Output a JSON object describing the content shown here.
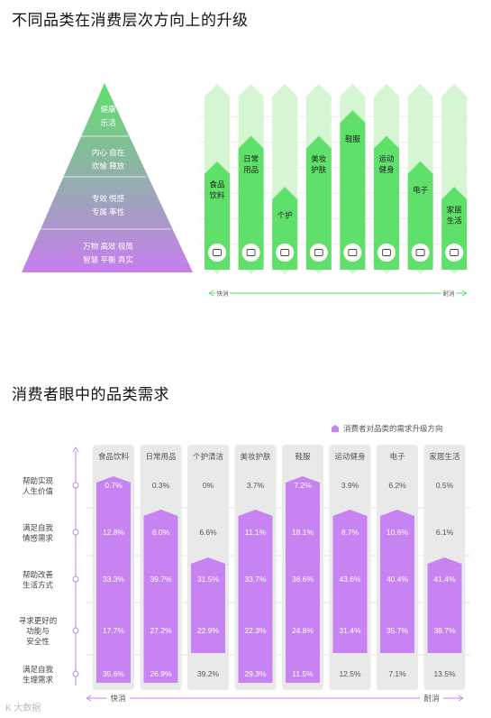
{
  "titles": {
    "top": "不同品类在消费层次方向上的升级",
    "bottom": "消费者眼中的品类需求"
  },
  "pyramid": {
    "levels": [
      {
        "lines": [
          "健康",
          "乐活"
        ]
      },
      {
        "lines": [
          "内心 自在",
          "欢愉 释放"
        ]
      },
      {
        "lines": [
          "专效  悦感",
          "专属  率性"
        ]
      },
      {
        "lines": [
          "万物  高效  极简",
          "智慧  平衡  真实"
        ]
      }
    ],
    "colors": {
      "top": "#5ee06a",
      "bottom": "#c77dee"
    }
  },
  "chart_data": [
    {
      "type": "bar",
      "title": "不同品类在消费层次方向上的升级",
      "categories": [
        "食品饮料",
        "日常用品",
        "个护",
        "美妆护肤",
        "鞋服",
        "运动健身",
        "电子",
        "家居生活"
      ],
      "category_labels": [
        [
          "食品",
          "饮料"
        ],
        [
          "日常",
          "用品"
        ],
        [
          "个护"
        ],
        [
          "美妆",
          "护肤"
        ],
        [
          "鞋服"
        ],
        [
          "运动",
          "健身"
        ],
        [
          "电子"
        ],
        [
          "家居",
          "生活"
        ]
      ],
      "icons": [
        "burger-icon",
        "toilet-paper-icon",
        "lotion-bottle-icon",
        "lipstick-icon",
        "boot-icon",
        "dumbbell-icon",
        "monitor-icon",
        "sofa-icon"
      ],
      "levels": [
        4,
        5,
        3,
        5,
        6,
        5,
        4,
        3
      ],
      "levels_max": 7,
      "xaxis": {
        "left": "快消",
        "right": "耐消"
      },
      "colors": {
        "bar": "#5ee06a",
        "band": "#d6f5d2"
      }
    },
    {
      "type": "table",
      "title": "消费者眼中的品类需求",
      "legend": "消费者对品类的需求升级方向",
      "categories": [
        "食品饮料",
        "日常用品",
        "个护清洁",
        "美妆护肤",
        "鞋服",
        "运动健身",
        "电子",
        "家居生活"
      ],
      "rows": [
        {
          "label": [
            "帮助实现",
            "人生价值"
          ],
          "values": [
            "0.7%",
            "0.3%",
            "0%",
            "3.7%",
            "7.2%",
            "3.9%",
            "6.2%",
            "0.5%"
          ]
        },
        {
          "label": [
            "满足自我",
            "情感需求"
          ],
          "values": [
            "12.8%",
            "6.0%",
            "6.6%",
            "11.1%",
            "18.1%",
            "8.7%",
            "10.6%",
            "6.1%"
          ]
        },
        {
          "label": [
            "帮助改善",
            "生活方式"
          ],
          "values": [
            "33.3%",
            "39.7%",
            "31.5%",
            "33.7%",
            "38.6%",
            "43.6%",
            "40.4%",
            "41.4%"
          ]
        },
        {
          "label": [
            "寻求更好的",
            "功能与",
            "安全性"
          ],
          "values": [
            "17.7%",
            "27.2%",
            "22.9%",
            "22.3%",
            "24.8%",
            "31.4%",
            "35.7%",
            "38.7%"
          ]
        },
        {
          "label": [
            "满足自我",
            "生理需求"
          ],
          "values": [
            "35.6%",
            "26.9%",
            "39.2%",
            "29.3%",
            "11.5%",
            "12.5%",
            "7.1%",
            "13.5%"
          ]
        }
      ],
      "highlight": [
        [
          0,
          4
        ],
        [
          1,
          4
        ],
        [
          2,
          3
        ],
        [
          1,
          4
        ],
        [
          0,
          4
        ],
        [
          1,
          3
        ],
        [
          1,
          3
        ],
        [
          2,
          3
        ]
      ],
      "xaxis": {
        "left": "快消",
        "right": "耐消"
      },
      "colors": {
        "bar": "#c783f2",
        "cell": "#e9e9e9",
        "axis": "#c783f2"
      }
    }
  ],
  "watermark": "K 大数据"
}
